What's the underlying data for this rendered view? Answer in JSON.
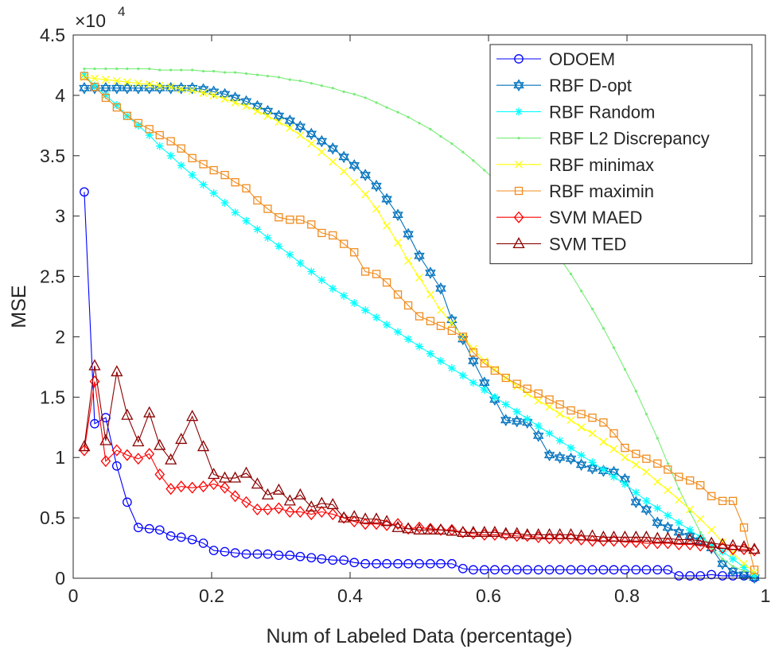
{
  "chart_data": {
    "type": "line",
    "title": "",
    "xlabel": "Num of Labeled Data (percentage)",
    "ylabel": "MSE",
    "exponent_label": {
      "base": "×10",
      "power": "4"
    },
    "xlim": [
      0,
      1
    ],
    "ylim": [
      0,
      45000
    ],
    "xticks": [
      0,
      0.2,
      0.4,
      0.6,
      0.8,
      1
    ],
    "xtick_labels": [
      "0",
      "0.2",
      "0.4",
      "0.6",
      "0.8",
      "1"
    ],
    "yticks": [
      0,
      5000,
      10000,
      15000,
      20000,
      25000,
      30000,
      35000,
      40000,
      45000
    ],
    "ytick_labels": [
      "0",
      "0.5",
      "1",
      "1.5",
      "2",
      "2.5",
      "3",
      "3.5",
      "4",
      "4.5"
    ],
    "grid": false,
    "legend_position": "top-right",
    "series": [
      {
        "name": "ODOEM",
        "color": "#0000ff",
        "marker": "circle",
        "markers_every": 1,
        "x": [
          0.016,
          0.031,
          0.047,
          0.063,
          0.078,
          0.094,
          0.11,
          0.125,
          0.141,
          0.156,
          0.172,
          0.188,
          0.203,
          0.219,
          0.234,
          0.25,
          0.266,
          0.281,
          0.297,
          0.313,
          0.328,
          0.344,
          0.359,
          0.375,
          0.391,
          0.406,
          0.422,
          0.438,
          0.453,
          0.469,
          0.484,
          0.5,
          0.516,
          0.531,
          0.547,
          0.563,
          0.578,
          0.594,
          0.609,
          0.625,
          0.641,
          0.656,
          0.672,
          0.688,
          0.703,
          0.719,
          0.734,
          0.75,
          0.766,
          0.781,
          0.797,
          0.813,
          0.828,
          0.844,
          0.859,
          0.875,
          0.891,
          0.906,
          0.922,
          0.938,
          0.953,
          0.969,
          0.984
        ],
        "y": [
          32000,
          12800,
          13300,
          9300,
          6300,
          4200,
          4100,
          4000,
          3500,
          3400,
          3200,
          2900,
          2300,
          2200,
          2100,
          2000,
          2000,
          2000,
          1900,
          1900,
          1800,
          1700,
          1600,
          1500,
          1500,
          1300,
          1200,
          1200,
          1200,
          1200,
          1200,
          1200,
          1200,
          1200,
          1200,
          800,
          700,
          700,
          700,
          700,
          700,
          700,
          700,
          700,
          700,
          700,
          700,
          700,
          700,
          700,
          700,
          700,
          700,
          700,
          700,
          200,
          200,
          200,
          300,
          200,
          200,
          200,
          50
        ]
      },
      {
        "name": "RBF D-opt",
        "color": "#0072bd",
        "marker": "hexagram",
        "markers_every": 1,
        "x": [
          0.016,
          0.031,
          0.047,
          0.063,
          0.078,
          0.094,
          0.11,
          0.125,
          0.141,
          0.156,
          0.172,
          0.188,
          0.203,
          0.219,
          0.234,
          0.25,
          0.266,
          0.281,
          0.297,
          0.313,
          0.328,
          0.344,
          0.359,
          0.375,
          0.391,
          0.406,
          0.422,
          0.438,
          0.453,
          0.469,
          0.484,
          0.5,
          0.516,
          0.531,
          0.547,
          0.563,
          0.578,
          0.594,
          0.609,
          0.625,
          0.641,
          0.656,
          0.672,
          0.688,
          0.703,
          0.719,
          0.734,
          0.75,
          0.766,
          0.781,
          0.797,
          0.813,
          0.828,
          0.844,
          0.859,
          0.875,
          0.891,
          0.906,
          0.922,
          0.938,
          0.953,
          0.969,
          0.984
        ],
        "y": [
          40600,
          40600,
          40600,
          40600,
          40600,
          40600,
          40600,
          40600,
          40600,
          40600,
          40600,
          40500,
          40300,
          40100,
          39800,
          39500,
          39100,
          38700,
          38300,
          37900,
          37400,
          36800,
          36200,
          35600,
          34900,
          34200,
          33400,
          32500,
          31400,
          30100,
          28500,
          26700,
          25300,
          24000,
          21400,
          19800,
          18000,
          16200,
          14800,
          13100,
          13000,
          12900,
          11800,
          10200,
          10000,
          9900,
          9400,
          9100,
          8900,
          8800,
          8200,
          6300,
          5700,
          4600,
          4200,
          3800,
          3500,
          3100,
          2500,
          1200,
          600,
          300,
          50
        ]
      },
      {
        "name": "RBF Random",
        "color": "#00ffff",
        "marker": "asterisk",
        "markers_every": 1,
        "x": [
          0.016,
          0.031,
          0.047,
          0.063,
          0.078,
          0.094,
          0.11,
          0.125,
          0.141,
          0.156,
          0.172,
          0.188,
          0.203,
          0.219,
          0.234,
          0.25,
          0.266,
          0.281,
          0.297,
          0.313,
          0.328,
          0.344,
          0.359,
          0.375,
          0.391,
          0.406,
          0.422,
          0.438,
          0.453,
          0.469,
          0.484,
          0.5,
          0.516,
          0.531,
          0.547,
          0.563,
          0.578,
          0.594,
          0.609,
          0.625,
          0.641,
          0.656,
          0.672,
          0.688,
          0.703,
          0.719,
          0.734,
          0.75,
          0.766,
          0.781,
          0.797,
          0.813,
          0.828,
          0.844,
          0.859,
          0.875,
          0.891,
          0.906,
          0.922,
          0.938,
          0.953,
          0.969,
          0.984
        ],
        "y": [
          41700,
          40800,
          40000,
          39200,
          38300,
          37500,
          36700,
          35800,
          35000,
          34200,
          33400,
          32600,
          31900,
          31100,
          30300,
          29600,
          28900,
          28200,
          27500,
          26800,
          26100,
          25400,
          24700,
          24000,
          23400,
          22800,
          22200,
          21600,
          21000,
          20400,
          19800,
          19200,
          18600,
          18000,
          17400,
          16800,
          16200,
          15600,
          15000,
          14400,
          13800,
          13200,
          12600,
          12000,
          11400,
          10800,
          10200,
          9600,
          9000,
          8400,
          7800,
          7100,
          6400,
          5800,
          5200,
          4600,
          4000,
          3400,
          2800,
          2200,
          1600,
          900,
          200
        ]
      },
      {
        "name": "RBF L2 Discrepancy",
        "color": "#77ec77",
        "marker": "point",
        "markers_every": 1,
        "x": [
          0.016,
          0.031,
          0.047,
          0.063,
          0.078,
          0.094,
          0.11,
          0.125,
          0.141,
          0.156,
          0.172,
          0.188,
          0.203,
          0.219,
          0.234,
          0.25,
          0.266,
          0.281,
          0.297,
          0.313,
          0.328,
          0.344,
          0.359,
          0.375,
          0.391,
          0.406,
          0.422,
          0.438,
          0.453,
          0.469,
          0.484,
          0.5,
          0.516,
          0.531,
          0.547,
          0.563,
          0.578,
          0.594,
          0.609,
          0.625,
          0.641,
          0.656,
          0.672,
          0.688,
          0.703,
          0.719,
          0.734,
          0.75,
          0.766,
          0.781,
          0.797,
          0.813,
          0.828,
          0.844,
          0.859,
          0.875,
          0.891,
          0.906,
          0.922,
          0.938,
          0.953,
          0.969,
          0.984
        ],
        "y": [
          42200,
          42200,
          42200,
          42200,
          42200,
          42200,
          42200,
          42100,
          42100,
          42100,
          42100,
          42000,
          42000,
          41900,
          41900,
          41800,
          41700,
          41600,
          41500,
          41300,
          41200,
          41000,
          40800,
          40600,
          40300,
          40100,
          39800,
          39400,
          39000,
          38600,
          38200,
          37700,
          37200,
          36600,
          36000,
          35300,
          34600,
          33800,
          33000,
          32100,
          31100,
          30100,
          29000,
          27800,
          26500,
          25200,
          23800,
          22300,
          20700,
          19100,
          17300,
          15500,
          13600,
          11600,
          9500,
          7400,
          5500,
          3800,
          2500,
          1600,
          1000,
          600,
          500
        ]
      },
      {
        "name": "RBF minimax",
        "color": "#ffff00",
        "marker": "x",
        "markers_every": 1,
        "x": [
          0.016,
          0.031,
          0.047,
          0.063,
          0.078,
          0.094,
          0.11,
          0.125,
          0.141,
          0.156,
          0.172,
          0.188,
          0.203,
          0.219,
          0.234,
          0.25,
          0.266,
          0.281,
          0.297,
          0.313,
          0.328,
          0.344,
          0.359,
          0.375,
          0.391,
          0.406,
          0.422,
          0.438,
          0.453,
          0.469,
          0.484,
          0.5,
          0.516,
          0.531,
          0.547,
          0.563,
          0.578,
          0.594,
          0.609,
          0.625,
          0.641,
          0.656,
          0.672,
          0.688,
          0.703,
          0.719,
          0.734,
          0.75,
          0.766,
          0.781,
          0.797,
          0.813,
          0.828,
          0.844,
          0.859,
          0.875,
          0.891,
          0.906,
          0.922,
          0.938,
          0.953,
          0.969,
          0.984
        ],
        "y": [
          41500,
          41400,
          41300,
          41200,
          41100,
          41000,
          40900,
          40800,
          40700,
          40500,
          40400,
          40200,
          40000,
          39700,
          39400,
          39100,
          38700,
          38300,
          37800,
          37300,
          36700,
          36000,
          35300,
          34500,
          33700,
          32800,
          31800,
          30600,
          29200,
          27800,
          26300,
          24900,
          23500,
          22200,
          21100,
          20000,
          19000,
          18000,
          17300,
          16600,
          15900,
          15300,
          14700,
          14200,
          13600,
          13100,
          12500,
          12000,
          11300,
          10700,
          10000,
          9400,
          8800,
          8000,
          7300,
          6500,
          5700,
          4900,
          4000,
          3000,
          2100,
          1200,
          500
        ]
      },
      {
        "name": "RBF maximin",
        "color": "#f08c1e",
        "marker": "square",
        "markers_every": 1,
        "x": [
          0.016,
          0.031,
          0.047,
          0.063,
          0.078,
          0.094,
          0.11,
          0.125,
          0.141,
          0.156,
          0.172,
          0.188,
          0.203,
          0.219,
          0.234,
          0.25,
          0.266,
          0.281,
          0.297,
          0.313,
          0.328,
          0.344,
          0.359,
          0.375,
          0.391,
          0.406,
          0.422,
          0.438,
          0.453,
          0.469,
          0.484,
          0.5,
          0.516,
          0.531,
          0.547,
          0.563,
          0.578,
          0.594,
          0.609,
          0.625,
          0.641,
          0.656,
          0.672,
          0.688,
          0.703,
          0.719,
          0.734,
          0.75,
          0.766,
          0.781,
          0.797,
          0.813,
          0.828,
          0.844,
          0.859,
          0.875,
          0.891,
          0.906,
          0.922,
          0.938,
          0.953,
          0.969,
          0.984
        ],
        "y": [
          41600,
          40700,
          39800,
          39000,
          38300,
          37700,
          37200,
          36700,
          36200,
          35600,
          34800,
          34300,
          33800,
          33400,
          32800,
          32300,
          31300,
          30600,
          29900,
          29700,
          29700,
          29300,
          28600,
          28400,
          27700,
          27000,
          25400,
          25200,
          24500,
          23500,
          22600,
          21700,
          21300,
          20900,
          20500,
          20000,
          18700,
          17800,
          17200,
          16600,
          16100,
          15700,
          15300,
          14800,
          14400,
          13900,
          13600,
          13300,
          12900,
          12000,
          10800,
          10300,
          9900,
          9500,
          9000,
          8400,
          8100,
          7700,
          6800,
          6400,
          6400,
          4200,
          700
        ]
      },
      {
        "name": "SVM MAED",
        "color": "#ff0000",
        "marker": "diamond",
        "markers_every": 1,
        "x": [
          0.016,
          0.031,
          0.047,
          0.063,
          0.078,
          0.094,
          0.11,
          0.125,
          0.141,
          0.156,
          0.172,
          0.188,
          0.203,
          0.219,
          0.234,
          0.25,
          0.266,
          0.281,
          0.297,
          0.313,
          0.328,
          0.344,
          0.359,
          0.375,
          0.391,
          0.406,
          0.422,
          0.438,
          0.453,
          0.469,
          0.484,
          0.5,
          0.516,
          0.531,
          0.547,
          0.563,
          0.578,
          0.594,
          0.609,
          0.625,
          0.641,
          0.656,
          0.672,
          0.688,
          0.703,
          0.719,
          0.734,
          0.75,
          0.766,
          0.781,
          0.797,
          0.813,
          0.828,
          0.844,
          0.859,
          0.875,
          0.891,
          0.906,
          0.922,
          0.938,
          0.953,
          0.969,
          0.984
        ],
        "y": [
          10600,
          16300,
          9700,
          10600,
          10200,
          9900,
          10300,
          8600,
          7400,
          7600,
          7500,
          7600,
          7800,
          7500,
          6800,
          6300,
          5700,
          5700,
          5800,
          5500,
          5500,
          5300,
          5500,
          5300,
          5000,
          4700,
          4500,
          4500,
          4400,
          4500,
          4100,
          4200,
          4100,
          4000,
          4000,
          3800,
          3700,
          3600,
          3600,
          3600,
          3500,
          3500,
          3400,
          3300,
          3300,
          3300,
          3200,
          3100,
          3100,
          3100,
          3000,
          3000,
          2900,
          2900,
          2900,
          2800,
          2800,
          2700,
          2600,
          2500,
          2400,
          2400,
          2300
        ]
      },
      {
        "name": "SVM TED",
        "color": "#8b0000",
        "marker": "triangle",
        "markers_every": 1,
        "x": [
          0.016,
          0.031,
          0.047,
          0.063,
          0.078,
          0.094,
          0.11,
          0.125,
          0.141,
          0.156,
          0.172,
          0.188,
          0.203,
          0.219,
          0.234,
          0.25,
          0.266,
          0.281,
          0.297,
          0.313,
          0.328,
          0.344,
          0.359,
          0.375,
          0.391,
          0.406,
          0.422,
          0.438,
          0.453,
          0.469,
          0.484,
          0.5,
          0.516,
          0.531,
          0.547,
          0.563,
          0.578,
          0.594,
          0.609,
          0.625,
          0.641,
          0.656,
          0.672,
          0.688,
          0.703,
          0.719,
          0.734,
          0.75,
          0.766,
          0.781,
          0.797,
          0.813,
          0.828,
          0.844,
          0.859,
          0.875,
          0.891,
          0.906,
          0.922,
          0.938,
          0.953,
          0.969,
          0.984
        ],
        "y": [
          10900,
          17600,
          11400,
          17100,
          13500,
          11300,
          13700,
          11000,
          9800,
          11500,
          13400,
          10900,
          8600,
          8300,
          8300,
          8700,
          7800,
          6900,
          7300,
          6400,
          6900,
          5900,
          6200,
          6100,
          5000,
          5100,
          4900,
          4900,
          4700,
          4200,
          4100,
          4000,
          4000,
          4000,
          3900,
          3800,
          3800,
          3800,
          3800,
          3700,
          3700,
          3600,
          3600,
          3600,
          3600,
          3600,
          3500,
          3500,
          3400,
          3400,
          3400,
          3400,
          3400,
          3300,
          3300,
          3200,
          3200,
          3100,
          2900,
          2800,
          2700,
          2600,
          2400
        ]
      }
    ]
  }
}
